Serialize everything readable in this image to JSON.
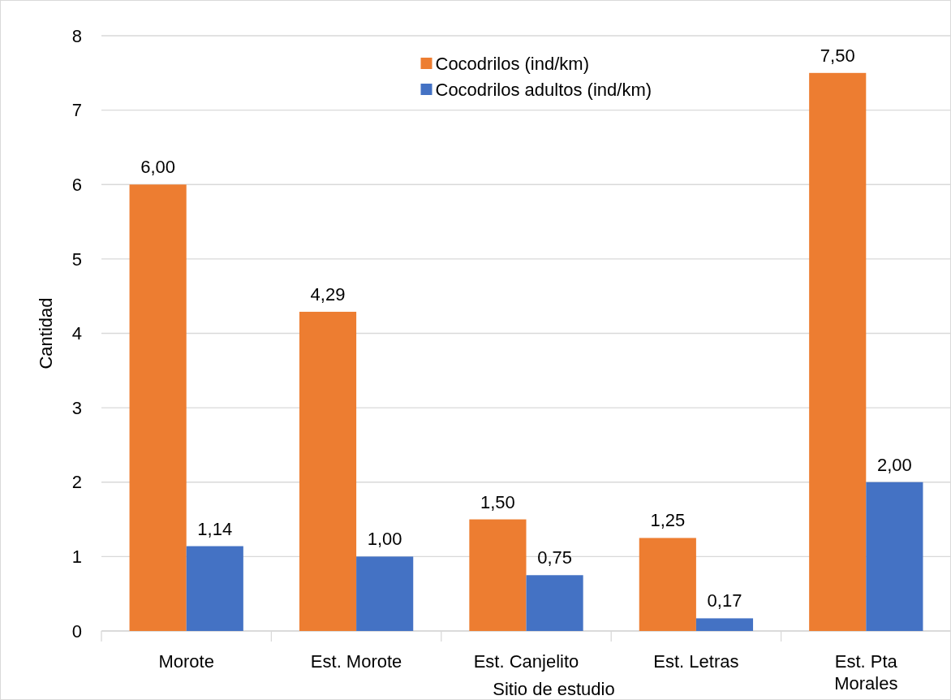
{
  "chart_data": {
    "type": "bar",
    "xlabel": "Sitio de estudio",
    "ylabel": "Cantidad",
    "categories": [
      "Morote",
      "Est. Morote",
      "Est. Canjelito",
      "Est. Letras",
      "Est. Pta Morales"
    ],
    "series": [
      {
        "name": "Cocodrilos (ind/km)",
        "color": "#ed7d31",
        "values": [
          6.0,
          4.29,
          1.5,
          1.25,
          7.5
        ],
        "value_labels": [
          "6,00",
          "4,29",
          "1,50",
          "1,25",
          "7,50"
        ]
      },
      {
        "name": "Cocodrilos adultos (ind/km)",
        "color": "#4472c4",
        "values": [
          1.14,
          1.0,
          0.75,
          0.17,
          2.0
        ],
        "value_labels": [
          "1,14",
          "1,00",
          "0,75",
          "0,17",
          "2,00"
        ]
      }
    ],
    "ylim": [
      0,
      8
    ],
    "yticks": [
      0,
      1,
      2,
      3,
      4,
      5,
      6,
      7,
      8
    ],
    "grid": "y",
    "legend": "top"
  }
}
